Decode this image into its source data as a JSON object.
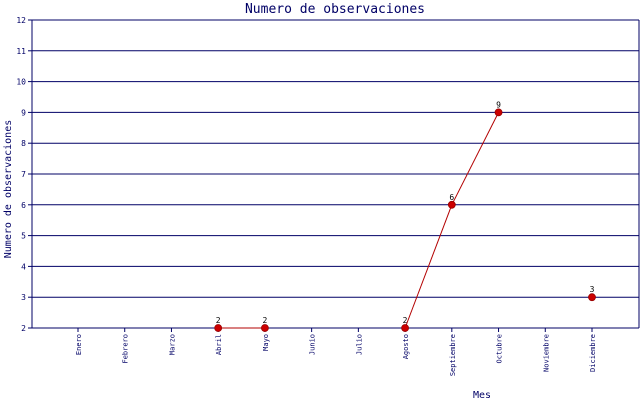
{
  "chart_data": {
    "type": "line",
    "title": "Numero de observaciones",
    "xlabel": "Mes",
    "ylabel": "Numero de observaciones",
    "categories": [
      "Enero",
      "Febrero",
      "Marzo",
      "Abril",
      "Mayo",
      "Junio",
      "Julio",
      "Agosto",
      "Septiembre",
      "Octubre",
      "Noviembre",
      "Diciembre"
    ],
    "series": [
      {
        "values": [
          null,
          null,
          null,
          2,
          2,
          null,
          null,
          2,
          6,
          9,
          null,
          3
        ]
      }
    ],
    "ylim": [
      2,
      12
    ],
    "yticks": [
      2,
      3,
      4,
      5,
      6,
      7,
      8,
      9,
      10,
      11,
      12
    ],
    "grid": "horizontal",
    "colors": {
      "grid": "#000066",
      "axis": "#000066",
      "line": "#b30000",
      "marker": "#cc0000",
      "text": "#000066"
    }
  }
}
